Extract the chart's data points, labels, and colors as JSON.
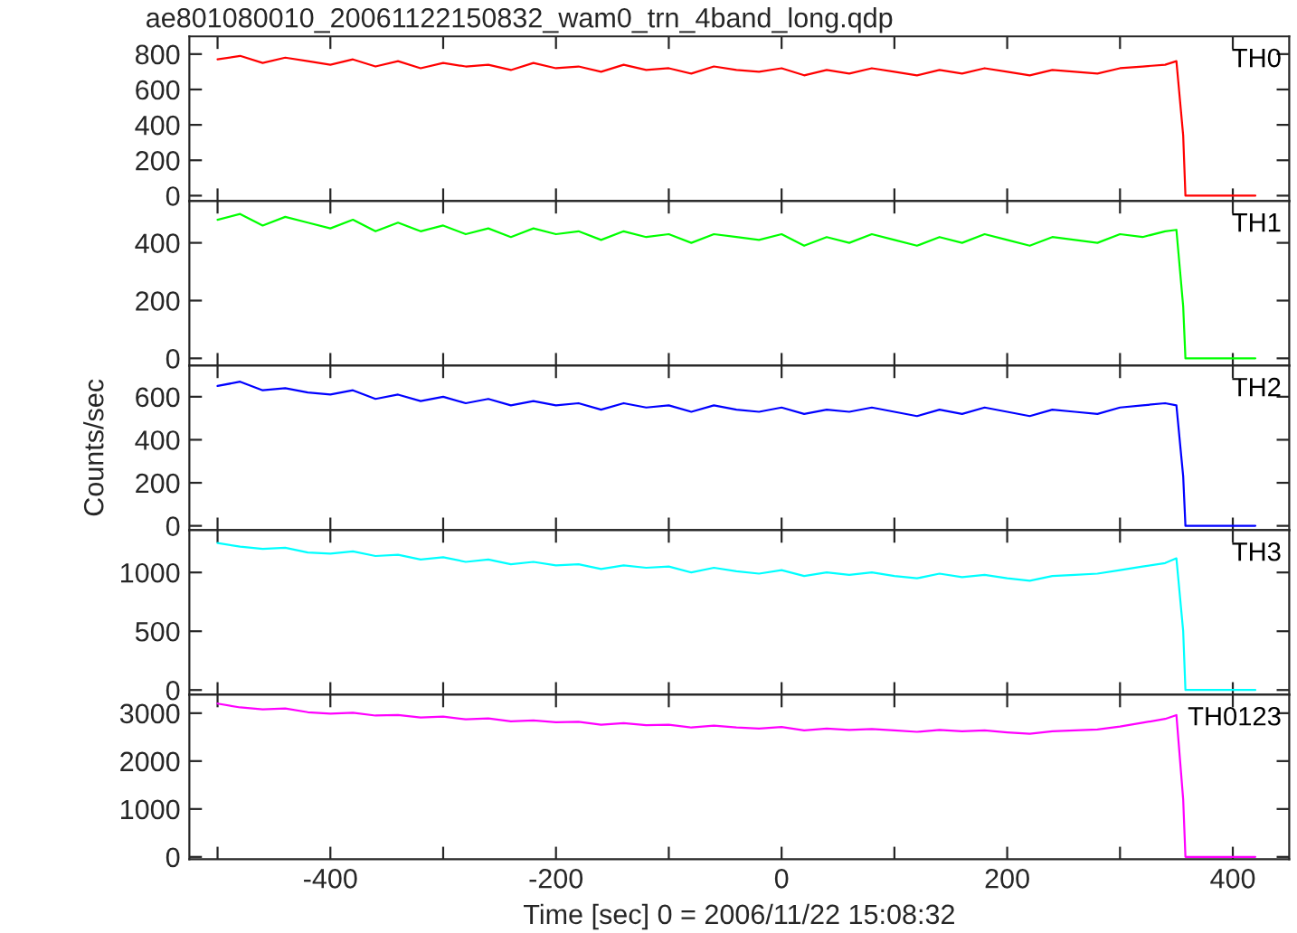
{
  "chart_data": [
    {
      "type": "line",
      "title": "ae801080010_20061122150832_wam0_trn_4band_long.qdp",
      "tick_labels": "y",
      "x": [
        -500,
        -480,
        -460,
        -440,
        -420,
        -400,
        -380,
        -360,
        -340,
        -320,
        -300,
        -280,
        -260,
        -240,
        -220,
        -200,
        -180,
        -160,
        -140,
        -120,
        -100,
        -80,
        -60,
        -40,
        -20,
        0,
        20,
        40,
        60,
        80,
        100,
        120,
        140,
        160,
        180,
        200,
        220,
        240,
        260,
        280,
        300,
        320,
        340,
        350,
        356,
        358,
        420
      ],
      "series": [
        {
          "name": "TH0",
          "color": "#ff0000",
          "values": [
            770,
            790,
            750,
            780,
            760,
            740,
            770,
            730,
            760,
            720,
            750,
            730,
            740,
            710,
            750,
            720,
            730,
            700,
            740,
            710,
            720,
            690,
            730,
            710,
            700,
            720,
            680,
            710,
            690,
            720,
            700,
            680,
            710,
            690,
            720,
            700,
            680,
            710,
            700,
            690,
            720,
            730,
            740,
            760,
            340,
            0,
            0
          ]
        }
      ],
      "xlim": [
        -525,
        450
      ],
      "xticks": [
        {
          "value": -500,
          "label": null
        },
        -400,
        {
          "value": -300,
          "label": null
        },
        -200,
        {
          "value": -100,
          "label": null
        },
        0,
        {
          "value": 100,
          "label": null
        },
        200,
        {
          "value": 300,
          "label": null
        },
        400
      ],
      "ylim": [
        -30,
        900
      ],
      "yticks": [
        0,
        200,
        400,
        600,
        800
      ]
    },
    {
      "type": "line",
      "tick_labels": "y",
      "x": [
        -500,
        -480,
        -460,
        -440,
        -420,
        -400,
        -380,
        -360,
        -340,
        -320,
        -300,
        -280,
        -260,
        -240,
        -220,
        -200,
        -180,
        -160,
        -140,
        -120,
        -100,
        -80,
        -60,
        -40,
        -20,
        0,
        20,
        40,
        60,
        80,
        100,
        120,
        140,
        160,
        180,
        200,
        220,
        240,
        260,
        280,
        300,
        320,
        340,
        350,
        356,
        358,
        420
      ],
      "series": [
        {
          "name": "TH1",
          "color": "#00ff00",
          "values": [
            480,
            500,
            460,
            490,
            470,
            450,
            480,
            440,
            470,
            440,
            460,
            430,
            450,
            420,
            450,
            430,
            440,
            410,
            440,
            420,
            430,
            400,
            430,
            420,
            410,
            430,
            390,
            420,
            400,
            430,
            410,
            390,
            420,
            400,
            430,
            410,
            390,
            420,
            410,
            400,
            430,
            420,
            440,
            445,
            180,
            0,
            0
          ]
        }
      ],
      "xlim": [
        -525,
        450
      ],
      "xticks": [
        {
          "value": -500,
          "label": null
        },
        -400,
        {
          "value": -300,
          "label": null
        },
        -200,
        {
          "value": -100,
          "label": null
        },
        0,
        {
          "value": 100,
          "label": null
        },
        200,
        {
          "value": 300,
          "label": null
        },
        400
      ],
      "ylim": [
        -25,
        545
      ],
      "yticks": [
        0,
        200,
        400
      ]
    },
    {
      "type": "line",
      "tick_labels": "y",
      "ylabel": "Counts/sec",
      "x": [
        -500,
        -480,
        -460,
        -440,
        -420,
        -400,
        -380,
        -360,
        -340,
        -320,
        -300,
        -280,
        -260,
        -240,
        -220,
        -200,
        -180,
        -160,
        -140,
        -120,
        -100,
        -80,
        -60,
        -40,
        -20,
        0,
        20,
        40,
        60,
        80,
        100,
        120,
        140,
        160,
        180,
        200,
        220,
        240,
        260,
        280,
        300,
        320,
        340,
        350,
        356,
        358,
        420
      ],
      "series": [
        {
          "name": "TH2",
          "color": "#0000ff",
          "values": [
            650,
            670,
            630,
            640,
            620,
            610,
            630,
            590,
            610,
            580,
            600,
            570,
            590,
            560,
            580,
            560,
            570,
            540,
            570,
            550,
            560,
            530,
            560,
            540,
            530,
            550,
            520,
            540,
            530,
            550,
            530,
            510,
            540,
            520,
            550,
            530,
            510,
            540,
            530,
            520,
            550,
            560,
            570,
            560,
            230,
            0,
            0
          ]
        }
      ],
      "xlim": [
        -525,
        450
      ],
      "xticks": [
        {
          "value": -500,
          "label": null
        },
        -400,
        {
          "value": -300,
          "label": null
        },
        -200,
        {
          "value": -100,
          "label": null
        },
        0,
        {
          "value": 100,
          "label": null
        },
        200,
        {
          "value": 300,
          "label": null
        },
        400
      ],
      "ylim": [
        -20,
        745
      ],
      "yticks": [
        0,
        200,
        400,
        600
      ]
    },
    {
      "type": "line",
      "tick_labels": "y",
      "x": [
        -500,
        -480,
        -460,
        -440,
        -420,
        -400,
        -380,
        -360,
        -340,
        -320,
        -300,
        -280,
        -260,
        -240,
        -220,
        -200,
        -180,
        -160,
        -140,
        -120,
        -100,
        -80,
        -60,
        -40,
        -20,
        0,
        20,
        40,
        60,
        80,
        100,
        120,
        140,
        160,
        180,
        200,
        220,
        240,
        260,
        280,
        300,
        320,
        340,
        350,
        356,
        358,
        420
      ],
      "series": [
        {
          "name": "TH3",
          "color": "#00ffff",
          "values": [
            1250,
            1220,
            1200,
            1210,
            1170,
            1160,
            1180,
            1140,
            1150,
            1110,
            1130,
            1090,
            1110,
            1070,
            1090,
            1060,
            1070,
            1030,
            1060,
            1040,
            1050,
            1000,
            1040,
            1010,
            990,
            1020,
            970,
            1000,
            980,
            1000,
            970,
            950,
            990,
            960,
            980,
            950,
            930,
            970,
            980,
            990,
            1020,
            1050,
            1080,
            1120,
            500,
            0,
            0
          ]
        }
      ],
      "xlim": [
        -525,
        450
      ],
      "xticks": [
        {
          "value": -500,
          "label": null
        },
        -400,
        {
          "value": -300,
          "label": null
        },
        -200,
        {
          "value": -100,
          "label": null
        },
        0,
        {
          "value": 100,
          "label": null
        },
        200,
        {
          "value": 300,
          "label": null
        },
        400
      ],
      "ylim": [
        -40,
        1360
      ],
      "yticks": [
        0,
        500,
        1000
      ]
    },
    {
      "type": "line",
      "xlabel": "Time [sec] 0 = 2006/11/22 15:08:32",
      "x": [
        -500,
        -480,
        -460,
        -440,
        -420,
        -400,
        -380,
        -360,
        -340,
        -320,
        -300,
        -280,
        -260,
        -240,
        -220,
        -200,
        -180,
        -160,
        -140,
        -120,
        -100,
        -80,
        -60,
        -40,
        -20,
        0,
        20,
        40,
        60,
        80,
        100,
        120,
        140,
        160,
        180,
        200,
        220,
        240,
        260,
        280,
        300,
        320,
        340,
        350,
        356,
        358,
        420
      ],
      "series": [
        {
          "name": "TH0123",
          "color": "#ff00ff",
          "values": [
            3200,
            3120,
            3080,
            3100,
            3020,
            2990,
            3010,
            2950,
            2960,
            2910,
            2930,
            2870,
            2890,
            2830,
            2850,
            2810,
            2820,
            2760,
            2790,
            2750,
            2760,
            2700,
            2740,
            2700,
            2680,
            2710,
            2640,
            2680,
            2650,
            2670,
            2640,
            2610,
            2650,
            2620,
            2640,
            2600,
            2570,
            2620,
            2640,
            2660,
            2720,
            2800,
            2880,
            2960,
            1200,
            0,
            0
          ]
        }
      ],
      "xlim": [
        -525,
        450
      ],
      "xticks": [
        {
          "value": -500,
          "label": null
        },
        -400,
        {
          "value": -300,
          "label": null
        },
        -200,
        {
          "value": -100,
          "label": null
        },
        0,
        {
          "value": 100,
          "label": null
        },
        200,
        {
          "value": 300,
          "label": null
        },
        400
      ],
      "ylim": [
        -50,
        3385
      ],
      "yticks": [
        0,
        1000,
        2000,
        3000
      ]
    }
  ]
}
